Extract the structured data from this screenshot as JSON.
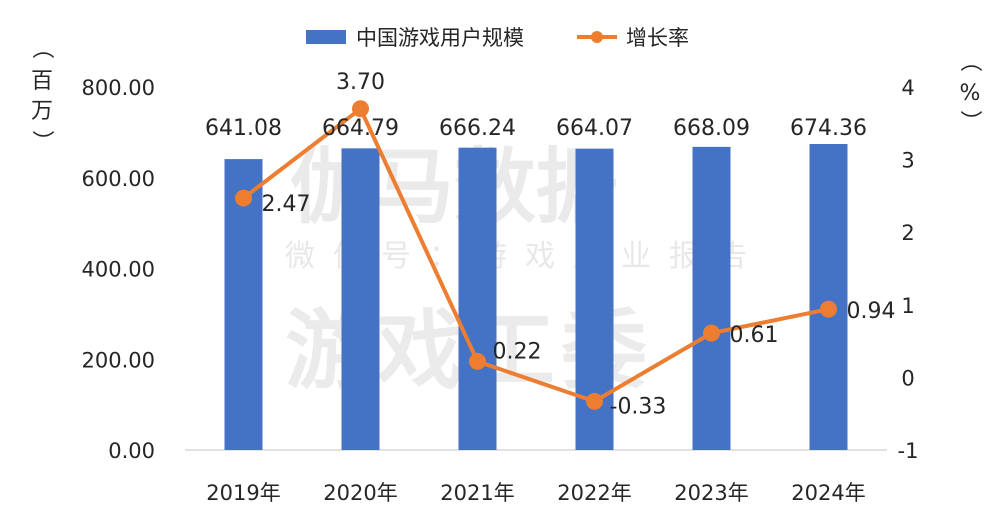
{
  "chart_data": {
    "type": "bar+line",
    "categories": [
      "2019年",
      "2020年",
      "2021年",
      "2022年",
      "2023年",
      "2024年"
    ],
    "series": [
      {
        "name": "中国游戏用户规模",
        "type": "bar",
        "axis": "left",
        "values": [
          641.08,
          664.79,
          666.24,
          664.07,
          668.09,
          674.36
        ],
        "labels": [
          "641.08",
          "664.79",
          "666.24",
          "664.07",
          "668.09",
          "674.36"
        ]
      },
      {
        "name": "增长率",
        "type": "line",
        "axis": "right",
        "values": [
          2.47,
          3.7,
          0.22,
          -0.33,
          0.61,
          0.94
        ],
        "labels": [
          "2.47",
          "3.70",
          "0.22",
          "-0.33",
          "0.61",
          "0.94"
        ]
      }
    ],
    "y_left": {
      "ylim": [
        0,
        800
      ],
      "ticks": [
        "0.00",
        "200.00",
        "400.00",
        "600.00",
        "800.00"
      ],
      "unit_chars": [
        "（",
        "百",
        "万",
        "）"
      ]
    },
    "y_right": {
      "ylim": [
        -1,
        4
      ],
      "ticks": [
        "-1",
        "0",
        "1",
        "2",
        "3",
        "4"
      ],
      "unit_chars": [
        "（",
        "%",
        "）"
      ]
    },
    "legend_position": "top-center",
    "grid": false,
    "colors": {
      "bar": "#4472c4",
      "line": "#ed7d31",
      "text": "#262626",
      "axis": "#d9d9d9"
    }
  },
  "watermark": {
    "line1": "伽马数据",
    "line2": "微信号：游戏产业报告",
    "line3": "游戏工委"
  }
}
